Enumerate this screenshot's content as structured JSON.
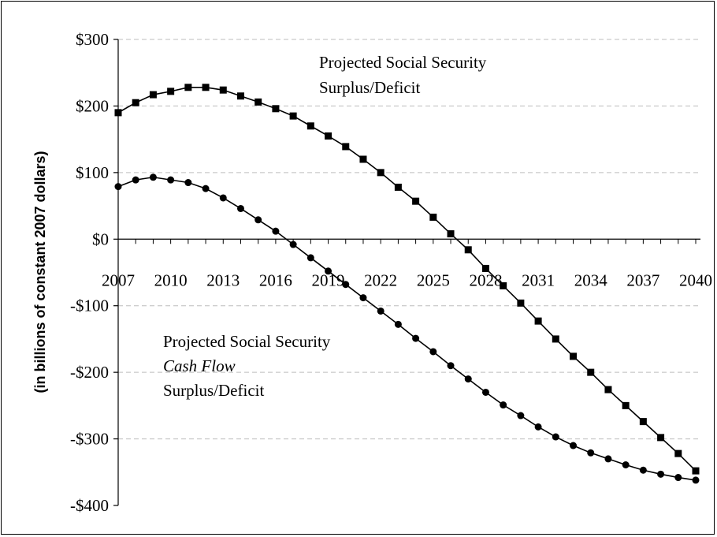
{
  "chart_data": {
    "type": "line",
    "title": "",
    "xlabel": "",
    "ylabel": "(in billions of constant 2007 dollars)",
    "xlim": [
      2007,
      2040
    ],
    "ylim": [
      -400,
      300
    ],
    "y_ticks": [
      300,
      200,
      100,
      0,
      -100,
      -200,
      -300,
      -400
    ],
    "y_tick_labels": [
      "$300",
      "$200",
      "$100",
      "$0",
      "-$100",
      "-$200",
      "-$300",
      "-$400"
    ],
    "x_ticks": [
      2007,
      2010,
      2013,
      2016,
      2019,
      2022,
      2025,
      2028,
      2031,
      2034,
      2037,
      2040
    ],
    "x_tick_labels": [
      "2007",
      "2010",
      "2013",
      "2016",
      "2019",
      "2022",
      "2025",
      "2028",
      "2031",
      "2034",
      "2037",
      "2040"
    ],
    "grid": "horizontal dashed",
    "x": [
      2007,
      2008,
      2009,
      2010,
      2011,
      2012,
      2013,
      2014,
      2015,
      2016,
      2017,
      2018,
      2019,
      2020,
      2021,
      2022,
      2023,
      2024,
      2025,
      2026,
      2027,
      2028,
      2029,
      2030,
      2031,
      2032,
      2033,
      2034,
      2035,
      2036,
      2037,
      2038,
      2039,
      2040
    ],
    "series": [
      {
        "marker": "square",
        "color": "#000000",
        "values": [
          190,
          205,
          217,
          222,
          228,
          228,
          224,
          215,
          206,
          196,
          185,
          170,
          155,
          139,
          120,
          100,
          78,
          57,
          33,
          8,
          -16,
          -44,
          -70,
          -96,
          -123,
          -150,
          -176,
          -200,
          -226,
          -250,
          -274,
          -298,
          -322,
          -348
        ]
      },
      {
        "marker": "circle",
        "color": "#000000",
        "values": [
          79,
          89,
          93,
          89,
          85,
          76,
          62,
          46,
          29,
          12,
          -8,
          -28,
          -48,
          -68,
          -88,
          -108,
          -128,
          -149,
          -169,
          -190,
          -210,
          -230,
          -249,
          -265,
          -282,
          -297,
          -310,
          -321,
          -330,
          -339,
          -347,
          -353,
          -358,
          -362
        ]
      }
    ],
    "annotations": [
      {
        "lines": [
          "Projected Social Security",
          "Surplus/Deficit"
        ]
      },
      {
        "lines": [
          "Projected Social Security",
          "Cash Flow",
          "Surplus/Deficit"
        ]
      }
    ]
  }
}
